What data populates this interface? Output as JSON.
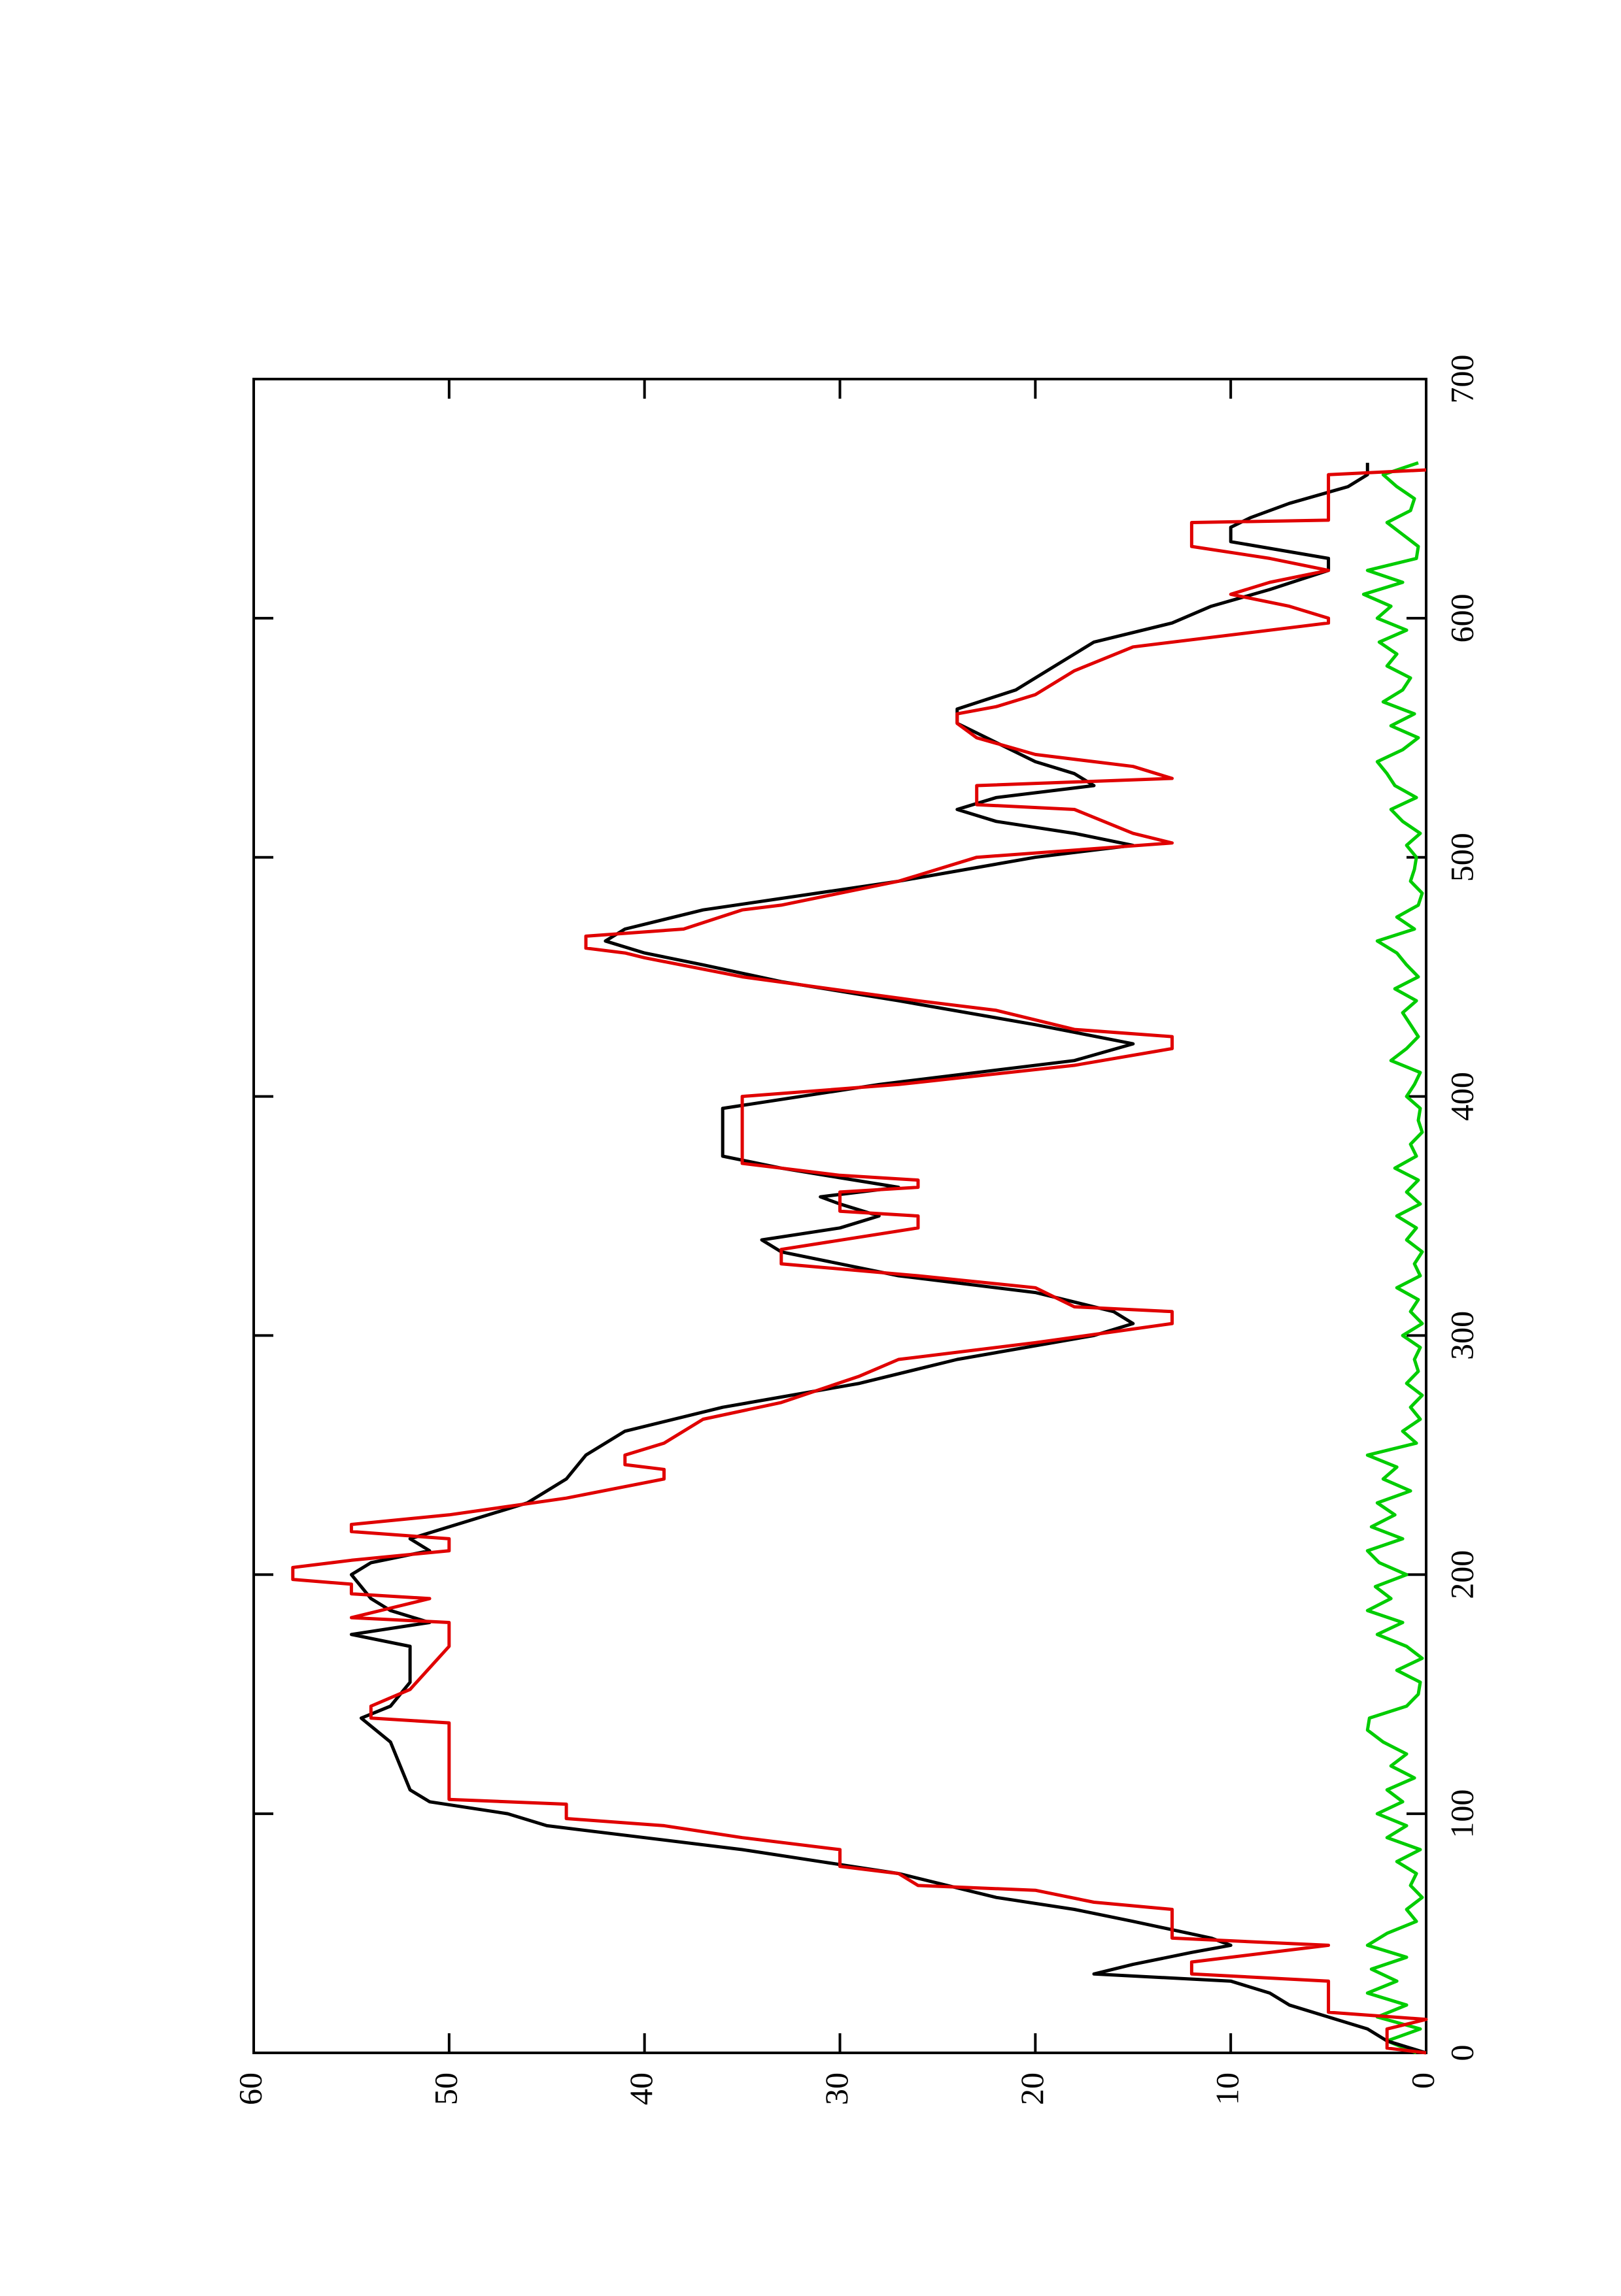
{
  "chart_data": {
    "type": "line",
    "xlim": [
      0,
      700
    ],
    "xticks": [
      0,
      100,
      200,
      300,
      400,
      500,
      600,
      700
    ],
    "ylim": [
      0,
      60
    ],
    "yticks": [
      0,
      10,
      20,
      30,
      40,
      50,
      60
    ],
    "rotated": true,
    "series": [
      {
        "color": "#00cc00",
        "x": [
          0,
          5,
          10,
          15,
          20,
          25,
          30,
          35,
          40,
          45,
          50,
          55,
          60,
          65,
          70,
          75,
          80,
          85,
          90,
          95,
          100,
          105,
          110,
          115,
          120,
          125,
          130,
          135,
          140,
          145,
          150,
          155,
          160,
          165,
          170,
          175,
          180,
          185,
          190,
          195,
          200,
          205,
          210,
          215,
          220,
          225,
          230,
          235,
          240,
          245,
          250,
          255,
          260,
          265,
          270,
          275,
          280,
          285,
          290,
          295,
          300,
          305,
          310,
          315,
          320,
          325,
          330,
          335,
          340,
          345,
          350,
          355,
          360,
          365,
          370,
          375,
          380,
          385,
          390,
          395,
          400,
          405,
          410,
          415,
          420,
          425,
          430,
          435,
          440,
          445,
          450,
          455,
          460,
          465,
          470,
          475,
          480,
          485,
          490,
          495,
          500,
          505,
          510,
          515,
          520,
          525,
          530,
          535,
          540,
          545,
          550,
          555,
          560,
          565,
          570,
          575,
          580,
          585,
          590,
          595,
          600,
          605,
          610,
          615,
          620,
          625,
          630,
          635,
          640,
          645,
          650,
          655,
          660,
          665
        ],
        "values": [
          0.5,
          2,
          0.3,
          2.5,
          1,
          3,
          1.5,
          2.8,
          1,
          3,
          2,
          0.5,
          1,
          0.2,
          0.8,
          0.5,
          1.5,
          0.3,
          2,
          1,
          2.5,
          1.2,
          2,
          0.6,
          1.8,
          1,
          2.2,
          3,
          2.9,
          1,
          0.4,
          0.3,
          1.5,
          0.2,
          1,
          2.5,
          1.2,
          3,
          1.8,
          2.6,
          1,
          2.4,
          3,
          1.2,
          2.8,
          1.6,
          2.5,
          0.8,
          2.2,
          1.5,
          3,
          0.5,
          1.2,
          0.3,
          0.8,
          0.2,
          1,
          0.4,
          0.6,
          0.3,
          1.2,
          0.2,
          0.8,
          0.4,
          1.5,
          0.3,
          0.6,
          0.2,
          1,
          0.5,
          1.5,
          0.3,
          1,
          0.4,
          1.6,
          0.5,
          0.8,
          0.2,
          0.4,
          0.3,
          1,
          0.6,
          0.3,
          1.8,
          1,
          0.4,
          0.8,
          1.2,
          0.5,
          1.6,
          0.4,
          1,
          1.5,
          2.5,
          0.6,
          1.5,
          0.4,
          0.2,
          0.8,
          0.6,
          0.5,
          1,
          0.3,
          1.2,
          1.8,
          0.5,
          1.6,
          2,
          2.5,
          1.2,
          0.4,
          1.8,
          0.6,
          2.2,
          1.2,
          0.8,
          2,
          1.5,
          2.4,
          1,
          2.5,
          1.8,
          3.2,
          1.2,
          3,
          0.5,
          0.4,
          1.2,
          2,
          0.8,
          0.6,
          1.5,
          2.2,
          0.4
        ]
      },
      {
        "color": "#000000",
        "x": [
          0,
          5,
          10,
          15,
          20,
          25,
          30,
          33,
          37,
          42,
          45,
          48,
          55,
          60,
          65,
          75,
          80,
          85,
          90,
          95,
          100,
          105,
          110,
          120,
          130,
          140,
          145,
          155,
          170,
          175,
          180,
          185,
          190,
          200,
          205,
          210,
          215,
          220,
          230,
          240,
          250,
          260,
          270,
          280,
          290,
          300,
          305,
          310,
          318,
          325,
          335,
          340,
          345,
          350,
          355,
          358,
          362,
          366,
          370,
          375,
          395,
          405,
          415,
          422,
          430,
          440,
          448,
          455,
          460,
          465,
          470,
          478,
          490,
          500,
          505,
          510,
          515,
          520,
          525,
          530,
          535,
          540,
          548,
          556,
          562,
          570,
          580,
          590,
          598,
          605,
          612,
          620,
          625,
          632,
          638,
          642,
          648,
          655,
          660,
          665
        ],
        "values": [
          0,
          2,
          3,
          5,
          7,
          8,
          10,
          17,
          15,
          12,
          10,
          11,
          15,
          18,
          22,
          27,
          31,
          35,
          40,
          45,
          47,
          51,
          52,
          52.5,
          53,
          54.5,
          53,
          52,
          52,
          55,
          51,
          53,
          54,
          55,
          54,
          51,
          52,
          50,
          46,
          44,
          43,
          41,
          36,
          29,
          24,
          17,
          15,
          16,
          20,
          27,
          33,
          34,
          30,
          28,
          30,
          31,
          27,
          30,
          33,
          36,
          36,
          28,
          18,
          15,
          20,
          27,
          33,
          37,
          40,
          42,
          41,
          37,
          27,
          20,
          15,
          18,
          22,
          24,
          22,
          17,
          18,
          20,
          22,
          24,
          24,
          21,
          19,
          17,
          13,
          11,
          8,
          5,
          5,
          10,
          10,
          9,
          7,
          4,
          3,
          3
        ]
      },
      {
        "color": "#e00000",
        "x": [
          0,
          2,
          10,
          14,
          17,
          30,
          33,
          38,
          45,
          48,
          60,
          63,
          68,
          70,
          75,
          78,
          85,
          90,
          95,
          98,
          104,
          106,
          138,
          140,
          145,
          152,
          170,
          180,
          182,
          186,
          190,
          192,
          196,
          198,
          203,
          205,
          206,
          210,
          215,
          218,
          221,
          225,
          232,
          240,
          244,
          246,
          250,
          255,
          265,
          272,
          283,
          290,
          297,
          305,
          310,
          312,
          320,
          325,
          330,
          336,
          345,
          350,
          352,
          360,
          362,
          365,
          367,
          372,
          400,
          405,
          413,
          420,
          425,
          428,
          436,
          440,
          450,
          458,
          460,
          462,
          467,
          470,
          478,
          480,
          490,
          495,
          500,
          506,
          510,
          520,
          522,
          530,
          533,
          538,
          543,
          550,
          556,
          560,
          563,
          568,
          578,
          588,
          598,
          600,
          605,
          610,
          615,
          620,
          625,
          630,
          640,
          641,
          650,
          660,
          662
        ],
        "values": [
          0,
          2,
          2,
          0,
          5,
          5,
          12,
          12,
          5,
          13,
          13,
          17,
          20,
          26,
          27,
          30,
          30,
          35,
          39,
          44,
          44,
          50,
          50,
          54,
          54,
          52,
          50,
          50,
          55,
          53,
          51,
          55,
          55,
          58,
          58,
          56,
          55,
          50,
          50,
          55,
          55,
          50,
          44,
          39,
          39,
          41,
          41,
          39,
          37,
          33,
          29,
          27,
          20,
          13,
          13,
          18,
          20,
          26,
          33,
          33,
          26,
          26,
          30,
          30,
          26,
          26,
          30,
          35,
          35,
          27,
          18,
          13,
          13,
          18,
          22,
          26,
          35,
          40,
          41,
          43,
          43,
          38,
          35,
          33,
          27,
          25,
          23,
          13,
          15,
          18,
          23,
          23,
          13,
          15,
          20,
          23,
          24,
          24,
          22,
          20,
          18,
          15,
          5,
          5,
          7,
          10,
          8,
          5,
          8,
          12,
          12,
          5,
          5,
          5,
          0
        ]
      }
    ]
  }
}
